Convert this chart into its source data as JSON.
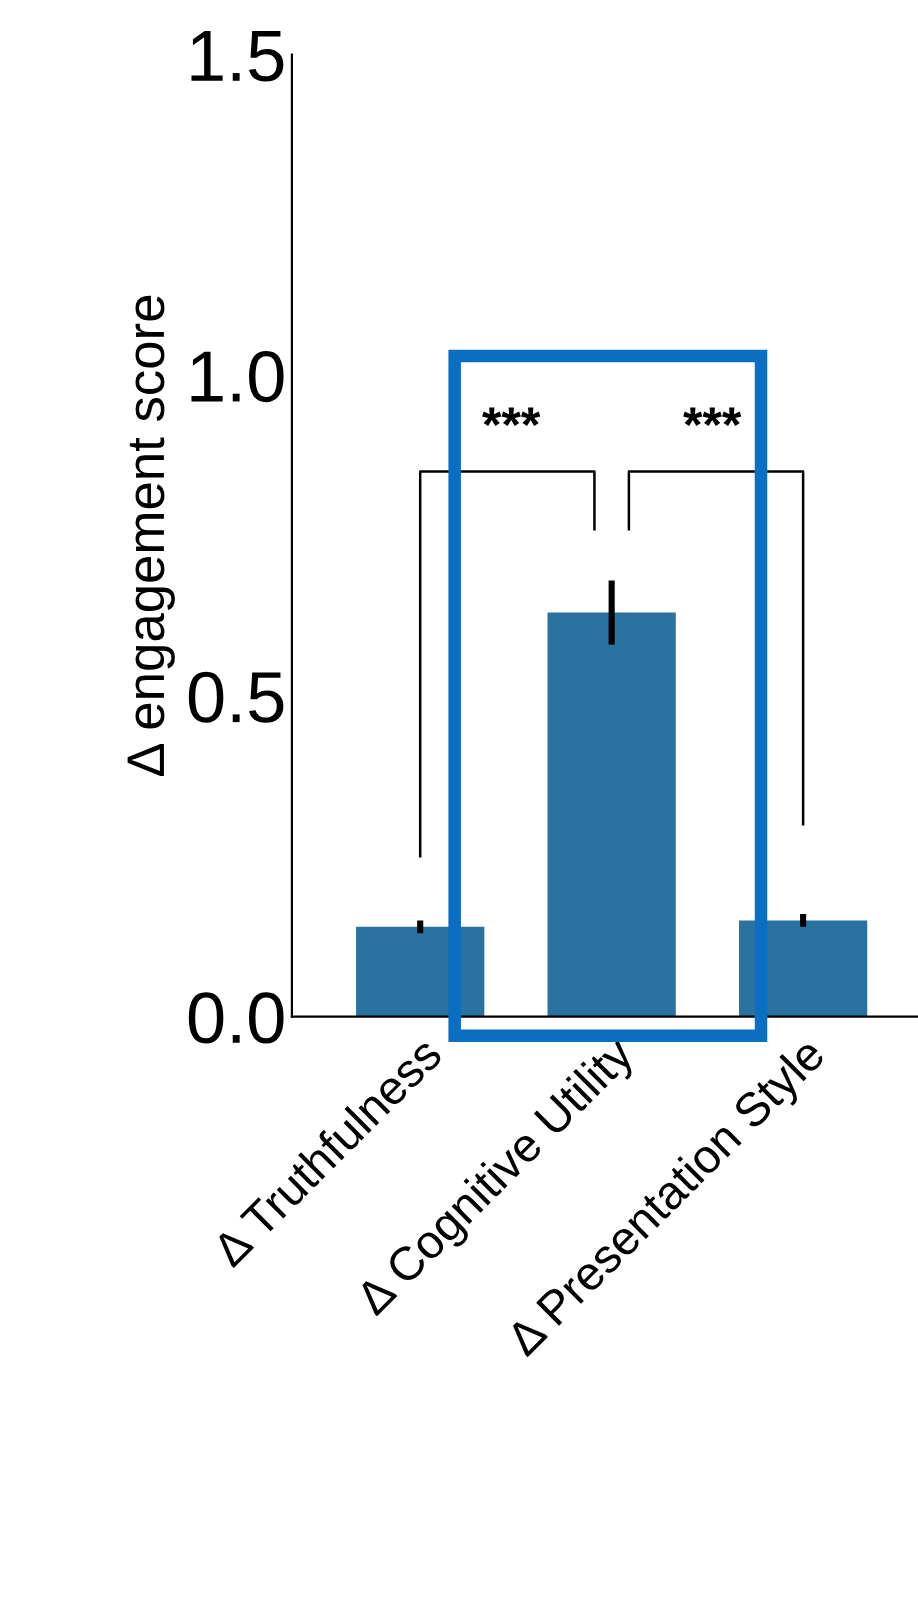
{
  "chart_data": {
    "type": "bar",
    "ylabel": "Δ engagement score",
    "categories": [
      "Δ Truthfulness",
      "Δ Cognitive Utility",
      "Δ Presentation Style"
    ],
    "values": [
      0.14,
      0.63,
      0.15
    ],
    "errors": [
      0.01,
      0.05,
      0.01
    ],
    "color": "#2a72a0",
    "ylim": [
      0,
      1.5
    ],
    "yticks": [
      {
        "value": 0,
        "label": "0.0"
      },
      0.5,
      {
        "value": 1,
        "label": "1.0"
      },
      1.5
    ],
    "grid": false,
    "annotations": [
      "***",
      "***"
    ]
  }
}
